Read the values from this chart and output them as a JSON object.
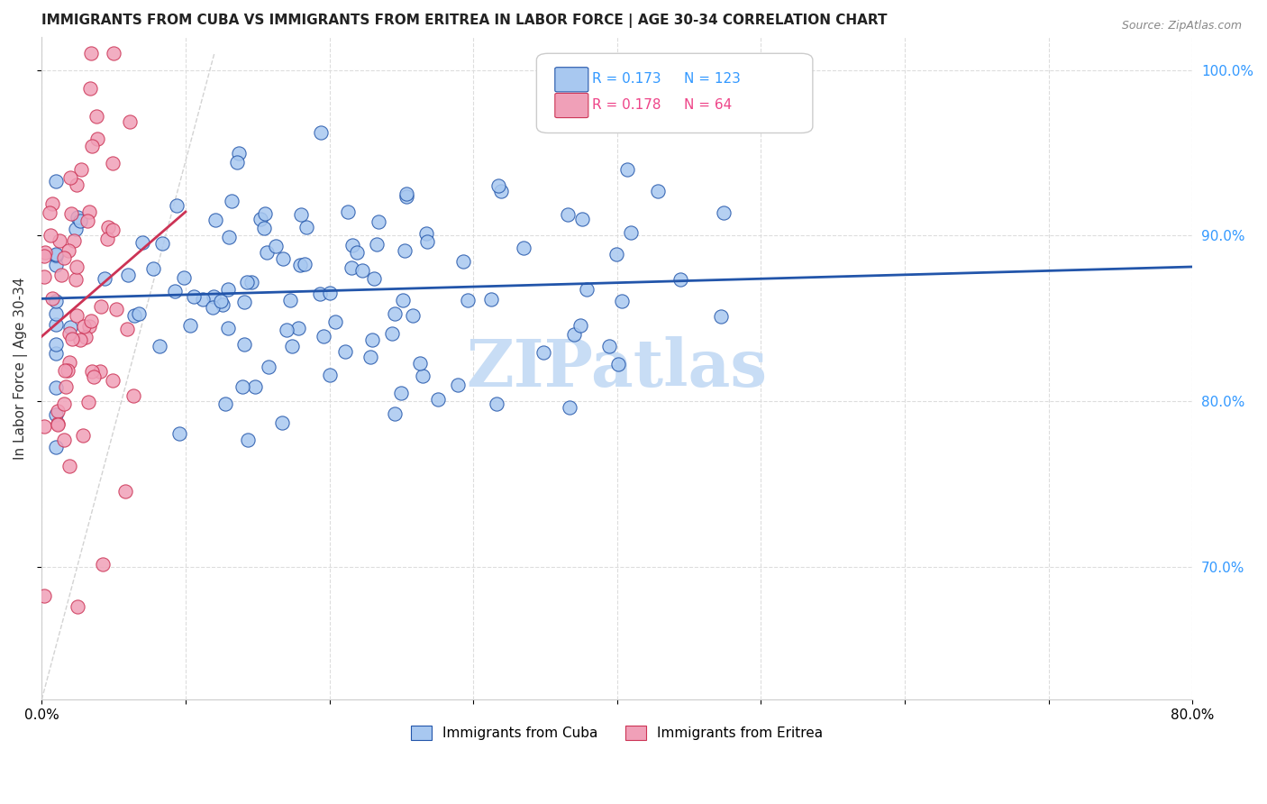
{
  "title": "IMMIGRANTS FROM CUBA VS IMMIGRANTS FROM ERITREA IN LABOR FORCE | AGE 30-34 CORRELATION CHART",
  "source": "Source: ZipAtlas.com",
  "ylabel": "In Labor Force | Age 30-34",
  "xlim": [
    0.0,
    0.8
  ],
  "ylim": [
    0.62,
    1.02
  ],
  "legend_R_cuba": "0.173",
  "legend_N_cuba": "123",
  "legend_R_eritrea": "0.178",
  "legend_N_eritrea": "64",
  "cuba_color": "#a8c8f0",
  "eritrea_color": "#f0a0b8",
  "cuba_line_color": "#2255aa",
  "eritrea_line_color": "#cc3355",
  "watermark": "ZIPatlas",
  "watermark_color": "#c8ddf5"
}
